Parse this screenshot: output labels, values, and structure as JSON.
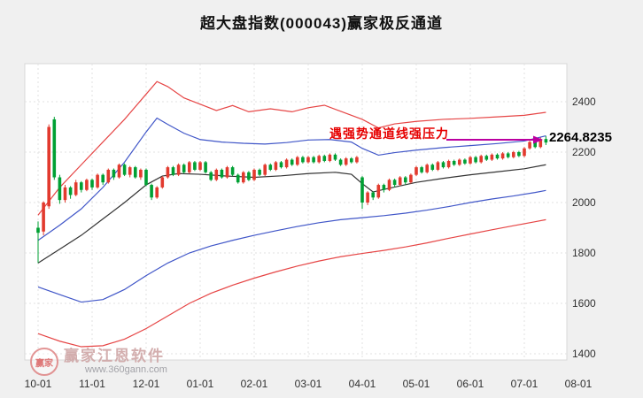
{
  "title": "超大盘指数(000043)赢家极反通道",
  "annotation": {
    "label": "遇强势通道线强压力",
    "value": "2264.8235"
  },
  "watermark": {
    "brand": "赢家江恩软件",
    "url": "www.360gann.com",
    "logo_text": "赢家"
  },
  "colors": {
    "background": "#f0f0f0",
    "plot_bg": "#ffffff",
    "up": "#e23a2e",
    "down": "#00a033",
    "channel_red": "#e64545",
    "channel_blue": "#4056c8",
    "middle_black": "#333333",
    "annotation": "#e60000",
    "arrow": "#bb00a0",
    "value_text": "#000000",
    "gridline": "#e2e2e2",
    "axis_text": "#303030"
  },
  "chart_data": {
    "type": "candlestick",
    "title": "超大盘指数(000043)赢家极反通道",
    "xlabel": "",
    "ylabel": "",
    "x_labels": [
      "10-01",
      "11-01",
      "12-01",
      "01-01",
      "02-01",
      "03-01",
      "04-01",
      "05-01",
      "06-01",
      "07-01",
      "08-01"
    ],
    "y_ticks": [
      2400,
      2200,
      2000,
      1800,
      1600,
      1400
    ],
    "ylim": [
      1375,
      2550
    ],
    "grid": true,
    "legend": false,
    "candles_per_month": 10,
    "candles": [
      [
        1900,
        1925,
        1760,
        1880
      ],
      [
        1885,
        2005,
        1870,
        2000
      ],
      [
        1985,
        2310,
        1975,
        2300
      ],
      [
        2330,
        2340,
        2090,
        2100
      ],
      [
        2100,
        2110,
        1995,
        2010
      ],
      [
        2010,
        2070,
        2000,
        2060
      ],
      [
        2060,
        2065,
        2015,
        2030
      ],
      [
        2030,
        2090,
        2025,
        2080
      ],
      [
        2080,
        2085,
        2040,
        2050
      ],
      [
        2050,
        2095,
        2045,
        2090
      ],
      [
        2090,
        2095,
        2050,
        2060
      ],
      [
        2060,
        2115,
        2055,
        2110
      ],
      [
        2110,
        2115,
        2070,
        2080
      ],
      [
        2080,
        2135,
        2075,
        2130
      ],
      [
        2130,
        2135,
        2090,
        2100
      ],
      [
        2100,
        2155,
        2095,
        2150
      ],
      [
        2150,
        2155,
        2105,
        2110
      ],
      [
        2110,
        2145,
        2100,
        2140
      ],
      [
        2140,
        2145,
        2095,
        2100
      ],
      [
        2100,
        2135,
        2090,
        2130
      ],
      [
        2130,
        2135,
        2065,
        2070
      ],
      [
        2070,
        2075,
        2010,
        2020
      ],
      [
        2020,
        2065,
        2015,
        2060
      ],
      [
        2060,
        2105,
        2055,
        2100
      ],
      [
        2100,
        2145,
        2095,
        2140
      ],
      [
        2140,
        2145,
        2105,
        2110
      ],
      [
        2110,
        2155,
        2105,
        2150
      ],
      [
        2150,
        2155,
        2115,
        2120
      ],
      [
        2120,
        2165,
        2115,
        2160
      ],
      [
        2160,
        2165,
        2125,
        2130
      ],
      [
        2130,
        2165,
        2125,
        2160
      ],
      [
        2160,
        2165,
        2115,
        2120
      ],
      [
        2120,
        2125,
        2085,
        2090
      ],
      [
        2090,
        2135,
        2085,
        2130
      ],
      [
        2130,
        2135,
        2095,
        2100
      ],
      [
        2100,
        2145,
        2095,
        2140
      ],
      [
        2140,
        2145,
        2105,
        2110
      ],
      [
        2110,
        2115,
        2075,
        2080
      ],
      [
        2080,
        2125,
        2075,
        2120
      ],
      [
        2120,
        2125,
        2085,
        2090
      ],
      [
        2090,
        2135,
        2085,
        2130
      ],
      [
        2130,
        2135,
        2105,
        2110
      ],
      [
        2110,
        2155,
        2105,
        2150
      ],
      [
        2150,
        2155,
        2125,
        2130
      ],
      [
        2130,
        2165,
        2125,
        2160
      ],
      [
        2160,
        2165,
        2135,
        2140
      ],
      [
        2140,
        2175,
        2135,
        2170
      ],
      [
        2170,
        2175,
        2145,
        2150
      ],
      [
        2150,
        2185,
        2145,
        2180
      ],
      [
        2180,
        2185,
        2155,
        2160
      ],
      [
        2160,
        2185,
        2155,
        2180
      ],
      [
        2180,
        2185,
        2155,
        2160
      ],
      [
        2160,
        2190,
        2155,
        2185
      ],
      [
        2185,
        2190,
        2160,
        2165
      ],
      [
        2165,
        2195,
        2160,
        2190
      ],
      [
        2190,
        2195,
        2165,
        2170
      ],
      [
        2170,
        2175,
        2145,
        2150
      ],
      [
        2150,
        2180,
        2145,
        2175
      ],
      [
        2175,
        2180,
        2155,
        2160
      ],
      [
        2160,
        2185,
        2155,
        2180
      ],
      [
        2100,
        2105,
        1975,
        2000
      ],
      [
        2000,
        2045,
        1990,
        2040
      ],
      [
        2040,
        2045,
        2010,
        2020
      ],
      [
        2020,
        2075,
        2015,
        2070
      ],
      [
        2070,
        2075,
        2040,
        2050
      ],
      [
        2050,
        2095,
        2045,
        2090
      ],
      [
        2090,
        2095,
        2060,
        2070
      ],
      [
        2070,
        2105,
        2065,
        2100
      ],
      [
        2100,
        2105,
        2070,
        2080
      ],
      [
        2080,
        2115,
        2075,
        2110
      ],
      [
        2110,
        2145,
        2105,
        2140
      ],
      [
        2140,
        2145,
        2115,
        2120
      ],
      [
        2120,
        2155,
        2115,
        2150
      ],
      [
        2150,
        2155,
        2125,
        2130
      ],
      [
        2130,
        2165,
        2125,
        2160
      ],
      [
        2160,
        2165,
        2135,
        2140
      ],
      [
        2140,
        2170,
        2135,
        2165
      ],
      [
        2165,
        2170,
        2145,
        2150
      ],
      [
        2150,
        2175,
        2145,
        2170
      ],
      [
        2170,
        2175,
        2150,
        2155
      ],
      [
        2155,
        2185,
        2150,
        2180
      ],
      [
        2180,
        2185,
        2155,
        2160
      ],
      [
        2160,
        2190,
        2155,
        2185
      ],
      [
        2185,
        2190,
        2165,
        2170
      ],
      [
        2170,
        2195,
        2165,
        2190
      ],
      [
        2190,
        2195,
        2170,
        2175
      ],
      [
        2175,
        2200,
        2170,
        2195
      ],
      [
        2195,
        2200,
        2175,
        2180
      ],
      [
        2180,
        2205,
        2175,
        2200
      ],
      [
        2200,
        2205,
        2180,
        2185
      ],
      [
        2185,
        2220,
        2180,
        2215
      ],
      [
        2215,
        2245,
        2210,
        2240
      ],
      [
        2240,
        2245,
        2215,
        2220
      ],
      [
        2220,
        2258,
        2215,
        2252
      ],
      [
        2252,
        2264,
        2228,
        2238
      ]
    ],
    "lines": [
      {
        "name": "upper-channel-red",
        "color": "#e64545",
        "width": 1.2,
        "points": [
          [
            0,
            1950
          ],
          [
            4,
            2060
          ],
          [
            8,
            2150
          ],
          [
            12,
            2240
          ],
          [
            16,
            2330
          ],
          [
            20,
            2430
          ],
          [
            22,
            2480
          ],
          [
            24,
            2460
          ],
          [
            27,
            2415
          ],
          [
            30,
            2390
          ],
          [
            33,
            2365
          ],
          [
            36,
            2385
          ],
          [
            39,
            2360
          ],
          [
            43,
            2372
          ],
          [
            47,
            2360
          ],
          [
            50,
            2376
          ],
          [
            53,
            2386
          ],
          [
            56,
            2362
          ],
          [
            60,
            2330
          ],
          [
            63,
            2296
          ],
          [
            66,
            2312
          ],
          [
            70,
            2322
          ],
          [
            75,
            2330
          ],
          [
            80,
            2334
          ],
          [
            85,
            2340
          ],
          [
            90,
            2346
          ],
          [
            94,
            2358
          ]
        ]
      },
      {
        "name": "upper-channel-blue",
        "color": "#4056c8",
        "width": 1.2,
        "points": [
          [
            0,
            1850
          ],
          [
            4,
            1910
          ],
          [
            8,
            1975
          ],
          [
            12,
            2060
          ],
          [
            16,
            2160
          ],
          [
            20,
            2280
          ],
          [
            22,
            2335
          ],
          [
            24,
            2310
          ],
          [
            27,
            2275
          ],
          [
            30,
            2250
          ],
          [
            34,
            2240
          ],
          [
            38,
            2235
          ],
          [
            42,
            2232
          ],
          [
            46,
            2238
          ],
          [
            50,
            2248
          ],
          [
            54,
            2250
          ],
          [
            58,
            2240
          ],
          [
            60,
            2215
          ],
          [
            63,
            2188
          ],
          [
            66,
            2198
          ],
          [
            70,
            2208
          ],
          [
            75,
            2218
          ],
          [
            80,
            2226
          ],
          [
            85,
            2234
          ],
          [
            90,
            2244
          ],
          [
            94,
            2264.8
          ]
        ]
      },
      {
        "name": "middle-channel-black",
        "color": "#333333",
        "width": 1.2,
        "points": [
          [
            0,
            1760
          ],
          [
            4,
            1815
          ],
          [
            8,
            1870
          ],
          [
            12,
            1935
          ],
          [
            16,
            2000
          ],
          [
            20,
            2070
          ],
          [
            23,
            2105
          ],
          [
            26,
            2115
          ],
          [
            30,
            2112
          ],
          [
            35,
            2105
          ],
          [
            40,
            2100
          ],
          [
            45,
            2106
          ],
          [
            50,
            2115
          ],
          [
            55,
            2120
          ],
          [
            58,
            2112
          ],
          [
            60,
            2075
          ],
          [
            62,
            2042
          ],
          [
            64,
            2052
          ],
          [
            67,
            2066
          ],
          [
            70,
            2080
          ],
          [
            75,
            2096
          ],
          [
            80,
            2110
          ],
          [
            85,
            2122
          ],
          [
            90,
            2134
          ],
          [
            94,
            2150
          ]
        ]
      },
      {
        "name": "lower-channel-blue",
        "color": "#4056c8",
        "width": 1.2,
        "points": [
          [
            0,
            1665
          ],
          [
            4,
            1635
          ],
          [
            8,
            1605
          ],
          [
            12,
            1615
          ],
          [
            16,
            1655
          ],
          [
            20,
            1710
          ],
          [
            24,
            1760
          ],
          [
            28,
            1800
          ],
          [
            32,
            1828
          ],
          [
            36,
            1850
          ],
          [
            40,
            1870
          ],
          [
            44,
            1888
          ],
          [
            48,
            1905
          ],
          [
            52,
            1920
          ],
          [
            56,
            1932
          ],
          [
            60,
            1940
          ],
          [
            64,
            1948
          ],
          [
            68,
            1958
          ],
          [
            72,
            1970
          ],
          [
            76,
            1984
          ],
          [
            80,
            2000
          ],
          [
            84,
            2014
          ],
          [
            88,
            2026
          ],
          [
            92,
            2040
          ],
          [
            94,
            2048
          ]
        ]
      },
      {
        "name": "lower-channel-red",
        "color": "#e64545",
        "width": 1.2,
        "points": [
          [
            0,
            1480
          ],
          [
            4,
            1450
          ],
          [
            8,
            1428
          ],
          [
            12,
            1432
          ],
          [
            16,
            1458
          ],
          [
            20,
            1500
          ],
          [
            24,
            1550
          ],
          [
            28,
            1600
          ],
          [
            32,
            1640
          ],
          [
            36,
            1672
          ],
          [
            40,
            1700
          ],
          [
            44,
            1725
          ],
          [
            48,
            1748
          ],
          [
            52,
            1768
          ],
          [
            56,
            1785
          ],
          [
            60,
            1798
          ],
          [
            64,
            1810
          ],
          [
            68,
            1824
          ],
          [
            72,
            1840
          ],
          [
            76,
            1858
          ],
          [
            80,
            1875
          ],
          [
            84,
            1892
          ],
          [
            88,
            1908
          ],
          [
            92,
            1924
          ],
          [
            94,
            1932
          ]
        ]
      }
    ]
  }
}
